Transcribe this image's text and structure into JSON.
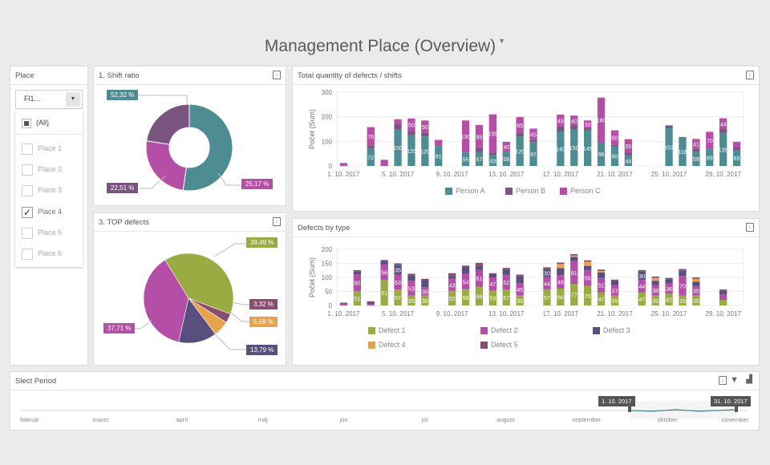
{
  "page_title": "Management Place (Overview)",
  "place_filter": {
    "title": "Place",
    "select_value": "Fl1...",
    "all_label": "(All)",
    "options": [
      {
        "label": "Place 1",
        "checked": false
      },
      {
        "label": "Place 2",
        "checked": false
      },
      {
        "label": "Place 3",
        "checked": false
      },
      {
        "label": "Place 4",
        "checked": true
      },
      {
        "label": "Place 5",
        "checked": false
      },
      {
        "label": "Place 6",
        "checked": false
      }
    ]
  },
  "shift_ratio": {
    "title": "1. Shift ratio",
    "labels": [
      "52,32 %",
      "25,17 %",
      "22,51 %"
    ]
  },
  "top_defects": {
    "title": "3. TOP defects",
    "labels": [
      "39,49 %",
      "3,32 %",
      "5,68 %",
      "13,79 %",
      "37,71 %"
    ]
  },
  "total_defects": {
    "title": "Total quantity of defects / shifts",
    "legend": [
      "Person A",
      "Person B",
      "Person C"
    ]
  },
  "defects_by_type": {
    "title": "Defects by type",
    "legend": [
      "Defect 1",
      "Defect 2",
      "Defect 3",
      "Defect 4",
      "Defect 5"
    ]
  },
  "period": {
    "title": "Slect Period",
    "months": [
      "február",
      "marec",
      "apríl",
      "máj",
      "jún",
      "júl",
      "august",
      "september",
      "október",
      "november"
    ],
    "range_start": "1. 10. 2017",
    "range_end": "31. 10. 2017"
  },
  "chart_data": [
    {
      "type": "pie",
      "title": "1. Shift ratio",
      "categories": [
        "Person A",
        "Person C",
        "Person B"
      ],
      "values": [
        52.32,
        25.17,
        22.51
      ],
      "colors": [
        "#4e8c94",
        "#b54ea6",
        "#7a557f"
      ]
    },
    {
      "type": "pie",
      "title": "3. TOP defects",
      "categories": [
        "Defect 1",
        "Defect 5",
        "Defect 4",
        "Defect 3",
        "Defect 2"
      ],
      "values": [
        39.49,
        3.32,
        5.68,
        13.79,
        37.71
      ],
      "colors": [
        "#9aab43",
        "#8b4d6e",
        "#e8a24a",
        "#57507f",
        "#b54ea6"
      ]
    },
    {
      "type": "bar",
      "title": "Total quantity of defects / shifts",
      "ylabel": "Počet (Sum)",
      "ylim": [
        0,
        300
      ],
      "yticks": [
        0,
        100,
        200,
        300
      ],
      "x_ticks": [
        "1. 10. 2017",
        "5. 10. 2017",
        "9. 10. 2017",
        "13. 10. 2017",
        "17. 10. 2017",
        "21. 10. 2017",
        "25. 10. 2017",
        "29. 10. 2017"
      ],
      "colors": [
        "#4e8c94",
        "#7a557f",
        "#b54ea6"
      ],
      "series": [
        {
          "name": "Person A",
          "values": [
            0,
            0,
            72,
            0,
            150,
            125,
            120,
            81,
            0,
            55,
            57,
            43,
            58,
            120,
            97,
            0,
            140,
            150,
            145,
            98,
            80,
            44,
            0,
            0,
            153,
            118,
            59,
            69,
            135,
            65
          ]
        },
        {
          "name": "Person B",
          "values": [
            0,
            0,
            10,
            0,
            20,
            18,
            15,
            0,
            0,
            0,
            15,
            12,
            0,
            14,
            10,
            0,
            20,
            15,
            10,
            0,
            5,
            10,
            0,
            0,
            12,
            0,
            10,
            0,
            15,
            10
          ]
        },
        {
          "name": "Person C",
          "values": [
            12,
            0,
            76,
            25,
            20,
            50,
            50,
            25,
            0,
            130,
            95,
            155,
            40,
            65,
            45,
            0,
            49,
            40,
            30,
            180,
            60,
            55,
            0,
            0,
            0,
            0,
            41,
            70,
            44,
            23
          ]
        }
      ]
    },
    {
      "type": "bar",
      "title": "Defects by type",
      "ylabel": "Počet (Sum)",
      "ylim": [
        0,
        200
      ],
      "yticks": [
        0,
        50,
        100,
        150,
        200
      ],
      "x_ticks": [
        "1. 10. 2017",
        "5. 10. 2017",
        "9. 10. 2017",
        "13. 10. 2017",
        "17. 10. 2017",
        "21. 10. 2017",
        "25. 10. 2017",
        "29. 10. 2017"
      ],
      "colors": [
        "#9aab43",
        "#b54ea6",
        "#57507f",
        "#e8a24a",
        "#8b4d6e"
      ],
      "series": [
        {
          "name": "Defect 1",
          "values": [
            0,
            51,
            0,
            91,
            57,
            35,
            35,
            0,
            52,
            58,
            66,
            53,
            57,
            35,
            0,
            57,
            60,
            77,
            70,
            47,
            35,
            0,
            47,
            35,
            42,
            35,
            35,
            0,
            20,
            0
          ]
        },
        {
          "name": "Defect 2",
          "values": [
            5,
            60,
            5,
            56,
            53,
            53,
            30,
            0,
            43,
            54,
            61,
            47,
            52,
            45,
            0,
            44,
            48,
            81,
            56,
            51,
            37,
            0,
            44,
            38,
            36,
            70,
            35,
            0,
            20,
            0
          ]
        },
        {
          "name": "Defect 3",
          "values": [
            2,
            10,
            5,
            10,
            35,
            20,
            25,
            0,
            10,
            25,
            15,
            10,
            20,
            25,
            0,
            30,
            25,
            15,
            15,
            20,
            15,
            0,
            30,
            15,
            15,
            20,
            15,
            0,
            12,
            0
          ]
        },
        {
          "name": "Defect 4",
          "values": [
            0,
            0,
            0,
            0,
            0,
            0,
            0,
            0,
            0,
            0,
            0,
            0,
            0,
            0,
            0,
            0,
            15,
            5,
            15,
            5,
            0,
            0,
            0,
            10,
            0,
            0,
            10,
            0,
            0,
            0
          ]
        },
        {
          "name": "Defect 5",
          "values": [
            3,
            5,
            5,
            5,
            5,
            5,
            5,
            0,
            10,
            5,
            10,
            5,
            5,
            5,
            0,
            5,
            5,
            5,
            5,
            5,
            5,
            0,
            5,
            5,
            5,
            5,
            5,
            0,
            5,
            0
          ]
        }
      ]
    }
  ]
}
